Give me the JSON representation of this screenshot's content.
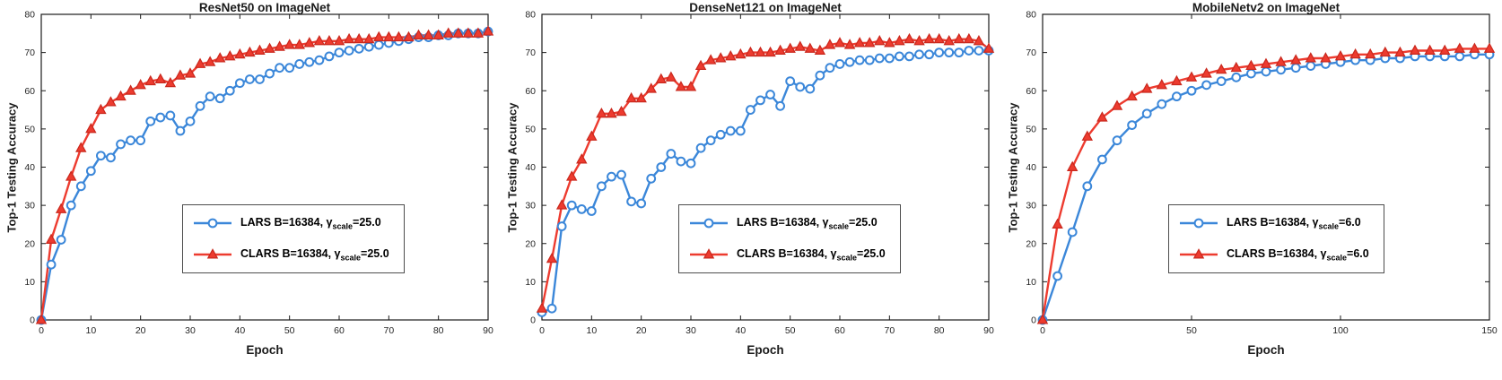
{
  "chart_data": [
    {
      "type": "line",
      "title": "ResNet50 on ImageNet",
      "xlabel": "Epoch",
      "ylabel": "Top-1 Testing Accuracy",
      "xlim": [
        0,
        90
      ],
      "ylim": [
        0,
        80
      ],
      "xticks": [
        0,
        10,
        20,
        30,
        40,
        50,
        60,
        70,
        80,
        90
      ],
      "yticks": [
        0,
        10,
        20,
        30,
        40,
        50,
        60,
        70,
        80
      ],
      "grid": false,
      "legend_position": "center-right",
      "legend": [
        {
          "main": "LARS B=16384, γ",
          "sub": "scale",
          "suffix": "=25.0"
        },
        {
          "main": "CLARS B=16384, γ",
          "sub": "scale",
          "suffix": "=25.0"
        }
      ],
      "series": [
        {
          "name": "LARS B=16384, γ_scale=25.0",
          "marker": "circle",
          "color": "#3b87d9",
          "edge": "#3b87d9",
          "x": [
            0,
            2,
            4,
            6,
            8,
            10,
            12,
            14,
            16,
            18,
            20,
            22,
            24,
            26,
            28,
            30,
            32,
            34,
            36,
            38,
            40,
            42,
            44,
            46,
            48,
            50,
            52,
            54,
            56,
            58,
            60,
            62,
            64,
            66,
            68,
            70,
            72,
            74,
            76,
            78,
            80,
            82,
            84,
            86,
            88,
            90
          ],
          "y": [
            0,
            14.5,
            21,
            30,
            35,
            39,
            43,
            42.5,
            46,
            47,
            47,
            52,
            53,
            53.5,
            49.5,
            52,
            56,
            58.5,
            58,
            60,
            62,
            63,
            63,
            64.5,
            66,
            66,
            67,
            67.5,
            68,
            69,
            70,
            70.5,
            71,
            71.5,
            72,
            72.5,
            73,
            73.5,
            74,
            74,
            74.5,
            74.5,
            75,
            75,
            75,
            75.5
          ]
        },
        {
          "name": "CLARS B=16384, γ_scale=25.0",
          "marker": "triangle",
          "color": "#ed3b2f",
          "edge": "#c9281d",
          "x": [
            0,
            2,
            4,
            6,
            8,
            10,
            12,
            14,
            16,
            18,
            20,
            22,
            24,
            26,
            28,
            30,
            32,
            34,
            36,
            38,
            40,
            42,
            44,
            46,
            48,
            50,
            52,
            54,
            56,
            58,
            60,
            62,
            64,
            66,
            68,
            70,
            72,
            74,
            76,
            78,
            80,
            82,
            84,
            86,
            88,
            90
          ],
          "y": [
            0,
            21,
            29,
            37.5,
            45,
            50,
            55,
            57,
            58.5,
            60,
            61.5,
            62.5,
            63,
            62,
            64,
            64.5,
            67,
            67.5,
            68.5,
            69,
            69.5,
            70,
            70.5,
            71,
            71.5,
            72,
            72,
            72.5,
            73,
            73,
            73,
            73.5,
            73.5,
            73.5,
            74,
            74,
            74,
            74,
            74.5,
            74.5,
            74.5,
            75,
            75,
            75,
            75,
            75.5
          ]
        }
      ]
    },
    {
      "type": "line",
      "title": "DenseNet121 on ImageNet",
      "xlabel": "Epoch",
      "ylabel": "Top-1 Testing Accuracy",
      "xlim": [
        0,
        90
      ],
      "ylim": [
        0,
        80
      ],
      "xticks": [
        0,
        10,
        20,
        30,
        40,
        50,
        60,
        70,
        80,
        90
      ],
      "yticks": [
        0,
        10,
        20,
        30,
        40,
        50,
        60,
        70,
        80
      ],
      "grid": false,
      "legend_position": "center-right",
      "legend": [
        {
          "main": "LARS B=16384, γ",
          "sub": "scale",
          "suffix": "=25.0"
        },
        {
          "main": "CLARS B=16384, γ",
          "sub": "scale",
          "suffix": "=25.0"
        }
      ],
      "series": [
        {
          "name": "LARS B=16384, γ_scale=25.0",
          "marker": "circle",
          "color": "#3b87d9",
          "edge": "#3b87d9",
          "x": [
            0,
            2,
            4,
            6,
            8,
            10,
            12,
            14,
            16,
            18,
            20,
            22,
            24,
            26,
            28,
            30,
            32,
            34,
            36,
            38,
            40,
            42,
            44,
            46,
            48,
            50,
            52,
            54,
            56,
            58,
            60,
            62,
            64,
            66,
            68,
            70,
            72,
            74,
            76,
            78,
            80,
            82,
            84,
            86,
            88,
            90
          ],
          "y": [
            2,
            3,
            24.5,
            30,
            29,
            28.5,
            35,
            37.5,
            38,
            31,
            30.5,
            37,
            40,
            43.5,
            41.5,
            41,
            45,
            47,
            48.5,
            49.5,
            49.5,
            55,
            57.5,
            59,
            56,
            62.5,
            61,
            60.5,
            64,
            66,
            67,
            67.5,
            68,
            68,
            68.5,
            68.5,
            69,
            69,
            69.5,
            69.5,
            70,
            70,
            70,
            70.5,
            70.5,
            70.5
          ]
        },
        {
          "name": "CLARS B=16384, γ_scale=25.0",
          "marker": "triangle",
          "color": "#ed3b2f",
          "edge": "#c9281d",
          "x": [
            0,
            2,
            4,
            6,
            8,
            10,
            12,
            14,
            16,
            18,
            20,
            22,
            24,
            26,
            28,
            30,
            32,
            34,
            36,
            38,
            40,
            42,
            44,
            46,
            48,
            50,
            52,
            54,
            56,
            58,
            60,
            62,
            64,
            66,
            68,
            70,
            72,
            74,
            76,
            78,
            80,
            82,
            84,
            86,
            88,
            90
          ],
          "y": [
            3,
            16,
            30,
            37.5,
            42,
            48,
            54,
            54,
            54.5,
            58,
            58,
            60.5,
            63,
            63.5,
            61,
            61,
            66.5,
            68,
            68.5,
            69,
            69.5,
            70,
            70,
            70,
            70.5,
            71,
            71.5,
            71,
            70.5,
            72,
            72.5,
            72,
            72.5,
            72.5,
            73,
            72.5,
            73,
            73.5,
            73,
            73.5,
            73.5,
            73,
            73.5,
            73.5,
            73,
            71
          ]
        }
      ]
    },
    {
      "type": "line",
      "title": "MobileNetv2 on ImageNet",
      "xlabel": "Epoch",
      "ylabel": "Top-1 Testing Accuracy",
      "xlim": [
        0,
        150
      ],
      "ylim": [
        0,
        80
      ],
      "xticks": [
        0,
        50,
        100,
        150
      ],
      "yticks": [
        0,
        10,
        20,
        30,
        40,
        50,
        60,
        70,
        80
      ],
      "grid": false,
      "legend_position": "center-right",
      "legend": [
        {
          "main": "LARS B=16384, γ",
          "sub": "scale",
          "suffix": "=6.0"
        },
        {
          "main": "CLARS B=16384, γ",
          "sub": "scale",
          "suffix": "=6.0"
        }
      ],
      "series": [
        {
          "name": "LARS B=16384, γ_scale=6.0",
          "marker": "circle",
          "color": "#3b87d9",
          "edge": "#3b87d9",
          "x": [
            0,
            5,
            10,
            15,
            20,
            25,
            30,
            35,
            40,
            45,
            50,
            55,
            60,
            65,
            70,
            75,
            80,
            85,
            90,
            95,
            100,
            105,
            110,
            115,
            120,
            125,
            130,
            135,
            140,
            145,
            150
          ],
          "y": [
            0,
            11.5,
            23,
            35,
            42,
            47,
            51,
            54,
            56.5,
            58.5,
            60,
            61.5,
            62.5,
            63.5,
            64.5,
            65,
            65.5,
            66,
            66.5,
            67,
            67.5,
            68,
            68,
            68.5,
            68.5,
            69,
            69,
            69,
            69,
            69.5,
            69.5
          ]
        },
        {
          "name": "CLARS B=16384, γ_scale=6.0",
          "marker": "triangle",
          "color": "#ed3b2f",
          "edge": "#c9281d",
          "x": [
            0,
            5,
            10,
            15,
            20,
            25,
            30,
            35,
            40,
            45,
            50,
            55,
            60,
            65,
            70,
            75,
            80,
            85,
            90,
            95,
            100,
            105,
            110,
            115,
            120,
            125,
            130,
            135,
            140,
            145,
            150
          ],
          "y": [
            0,
            25,
            40,
            48,
            53,
            56,
            58.5,
            60.5,
            61.5,
            62.5,
            63.5,
            64.5,
            65.5,
            66,
            66.5,
            67,
            67.5,
            68,
            68.5,
            68.5,
            69,
            69.5,
            69.5,
            70,
            70,
            70.5,
            70.5,
            70.5,
            71,
            71,
            71
          ]
        }
      ]
    }
  ]
}
